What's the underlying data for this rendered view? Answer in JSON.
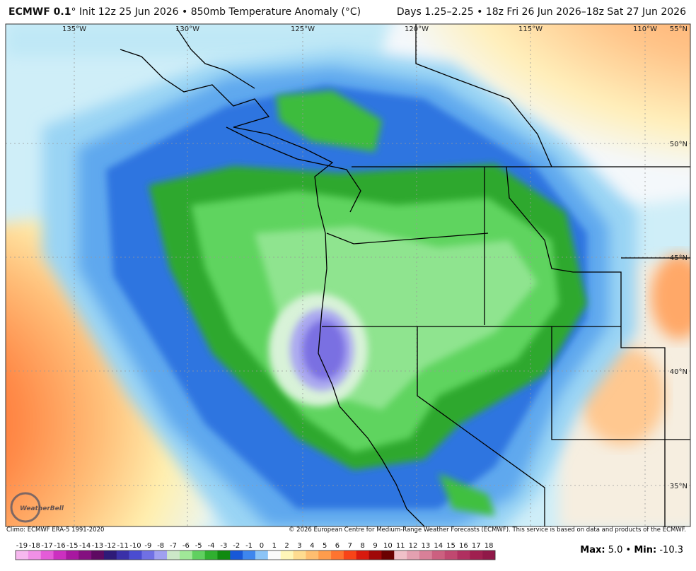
{
  "header": {
    "title_model": "ECMWF 0.1",
    "title_rest": "° Init 12z 25 Jun 2026 • 850mb Temperature Anomaly (°C)",
    "valid": "Days 1.25–2.25 • 18z Fri 26 Jun 2026–18z Sat 27 Jun 2026"
  },
  "map": {
    "longitude_labels": [
      "135°W",
      "130°W",
      "125°W",
      "120°W",
      "115°W",
      "110°W"
    ],
    "latitude_labels": [
      "55°N",
      "50°N",
      "45°N",
      "40°N",
      "35°N"
    ],
    "logo": "WeatherBell"
  },
  "footer": {
    "climo": "Climo: ECMWF ERA-5 1991-2020",
    "copyright": "© 2026 European Centre for Medium-Range Weather Forecasts (ECMWF). This service is based on data and products of the ECMWF."
  },
  "colorbar": {
    "ticks": [
      -19,
      -18,
      -17,
      -16,
      -15,
      -14,
      -13,
      -12,
      -11,
      -10,
      -9,
      -8,
      -7,
      -6,
      -5,
      -4,
      -3,
      -2,
      -1,
      0,
      1,
      2,
      3,
      4,
      5,
      6,
      7,
      8,
      9,
      10,
      11,
      12,
      13,
      14,
      15,
      16,
      17,
      18
    ],
    "colors": [
      "#f7b8ef",
      "#f090e6",
      "#e45cd8",
      "#cc30c0",
      "#a818a0",
      "#841080",
      "#5e0a62",
      "#2e1a78",
      "#3a30a8",
      "#4a4cd0",
      "#7070e4",
      "#a0a0f0",
      "#cce8c8",
      "#a0e898",
      "#60d060",
      "#30b030",
      "#108a10",
      "#1858d8",
      "#3e86ee",
      "#8cc4f6",
      "#fbfbfb",
      "#fff6b8",
      "#ffdc90",
      "#ffbe70",
      "#ff9c4c",
      "#ff7430",
      "#f84418",
      "#d81a0e",
      "#a00808",
      "#6a0000",
      "#f0c0c8",
      "#e4a0b0",
      "#d88098",
      "#cc6080",
      "#c04870",
      "#b03060",
      "#a02050",
      "#901848"
    ]
  },
  "stats": {
    "max_label": "Max:",
    "max_value": "5.0",
    "separator": "•",
    "min_label": "Min:",
    "min_value": "-10.3"
  }
}
